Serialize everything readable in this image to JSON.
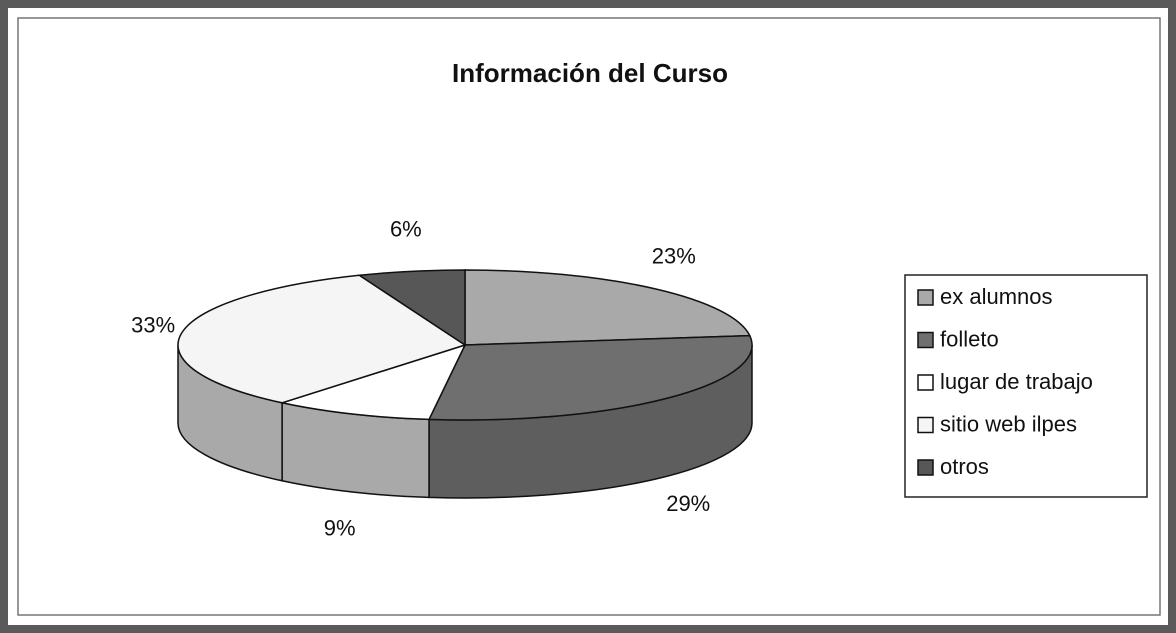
{
  "chart_data": {
    "type": "pie",
    "title": "Información del Curso",
    "categories": [
      "ex alumnos",
      "folleto",
      "lugar de trabajo",
      "sitio web ilpes",
      "otros"
    ],
    "values": [
      23,
      29,
      9,
      33,
      6
    ],
    "value_labels": [
      "23%",
      "29%",
      "9%",
      "33%",
      "6%"
    ],
    "colors": [
      "#a9a9a9",
      "#6f6f6f",
      "#ffffff",
      "#f5f5f5",
      "#575757"
    ],
    "legend": "right"
  }
}
